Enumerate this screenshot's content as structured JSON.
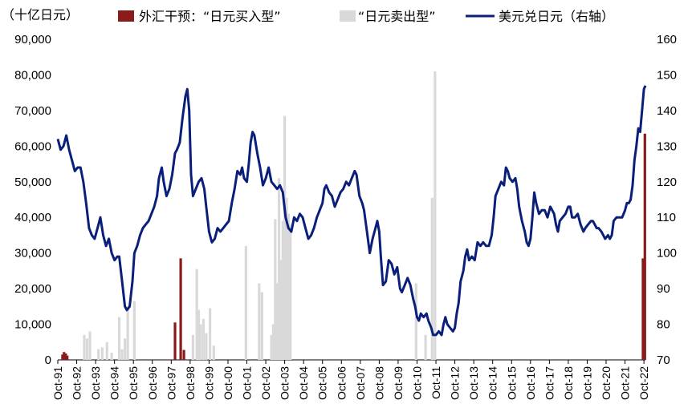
{
  "chart_data": {
    "type": "bar+line",
    "unit_label": "（十亿日元）",
    "legend": [
      {
        "key": "buy",
        "label": "外汇干预：“日元买入型”",
        "color": "#8B1A1A",
        "kind": "bar"
      },
      {
        "key": "sell",
        "label": "“日元卖出型”",
        "color": "#D9D9D9",
        "kind": "bar"
      },
      {
        "key": "rate",
        "label": "美元兑日元（右轴）",
        "color": "#0A1F7A",
        "kind": "line"
      }
    ],
    "left_axis": {
      "min": 0,
      "max": 90000,
      "ticks": [
        "0",
        "10,000",
        "20,000",
        "30,000",
        "40,000",
        "50,000",
        "60,000",
        "70,000",
        "80,000",
        "90,000"
      ]
    },
    "right_axis": {
      "min": 70,
      "max": 160,
      "ticks": [
        "70",
        "80",
        "90",
        "100",
        "110",
        "120",
        "130",
        "140",
        "150",
        "160"
      ]
    },
    "x_axis": {
      "start": 1991.75,
      "end": 2022.83,
      "tick_years": [
        1991,
        1992,
        1993,
        1994,
        1995,
        1996,
        1997,
        1998,
        1999,
        2000,
        2001,
        2002,
        2003,
        2004,
        2005,
        2006,
        2007,
        2008,
        2009,
        2010,
        2011,
        2012,
        2013,
        2014,
        2015,
        2016,
        2017,
        2018,
        2019,
        2020,
        2021,
        2022
      ],
      "tick_labels": [
        "Oct-91",
        "Oct-92",
        "Oct-93",
        "Oct-94",
        "Oct-95",
        "Oct-96",
        "Oct-97",
        "Oct-98",
        "Oct-99",
        "Oct-00",
        "Oct-01",
        "Oct-02",
        "Oct-03",
        "Oct-04",
        "Oct-05",
        "Oct-06",
        "Oct-07",
        "Oct-08",
        "Oct-09",
        "Oct-10",
        "Oct-11",
        "Oct-12",
        "Oct-13",
        "Oct-14",
        "Oct-15",
        "Oct-16",
        "Oct-17",
        "Oct-18",
        "Oct-19",
        "Oct-20",
        "Oct-21",
        "Oct-22"
      ]
    },
    "buy_bars": [
      {
        "t": 1992.0,
        "v": 1500
      },
      {
        "t": 1992.08,
        "v": 2200
      },
      {
        "t": 1992.17,
        "v": 1800
      },
      {
        "t": 1992.25,
        "v": 1200
      },
      {
        "t": 1997.95,
        "v": 10500
      },
      {
        "t": 1998.25,
        "v": 28500
      },
      {
        "t": 1998.42,
        "v": 2800
      },
      {
        "t": 2022.7,
        "v": 28500
      },
      {
        "t": 2022.8,
        "v": 63500
      }
    ],
    "sell_bars": [
      {
        "t": 1993.15,
        "v": 7000
      },
      {
        "t": 1993.3,
        "v": 6000
      },
      {
        "t": 1993.45,
        "v": 8000
      },
      {
        "t": 1993.9,
        "v": 3000
      },
      {
        "t": 1994.1,
        "v": 3500
      },
      {
        "t": 1994.35,
        "v": 5000
      },
      {
        "t": 1994.6,
        "v": 2000
      },
      {
        "t": 1995.0,
        "v": 12000
      },
      {
        "t": 1995.15,
        "v": 3000
      },
      {
        "t": 1995.3,
        "v": 6000
      },
      {
        "t": 1995.45,
        "v": 15000
      },
      {
        "t": 1995.8,
        "v": 16500
      },
      {
        "t": 1998.9,
        "v": 7000
      },
      {
        "t": 1999.1,
        "v": 25500
      },
      {
        "t": 1999.2,
        "v": 14000
      },
      {
        "t": 1999.3,
        "v": 10000
      },
      {
        "t": 1999.45,
        "v": 11500
      },
      {
        "t": 1999.6,
        "v": 7500
      },
      {
        "t": 1999.8,
        "v": 14500
      },
      {
        "t": 2000.0,
        "v": 4000
      },
      {
        "t": 2001.7,
        "v": 32000
      },
      {
        "t": 2002.4,
        "v": 21500
      },
      {
        "t": 2002.55,
        "v": 19000
      },
      {
        "t": 2003.05,
        "v": 7000
      },
      {
        "t": 2003.15,
        "v": 10000
      },
      {
        "t": 2003.25,
        "v": 39500
      },
      {
        "t": 2003.35,
        "v": 21500
      },
      {
        "t": 2003.45,
        "v": 51000
      },
      {
        "t": 2003.55,
        "v": 28000
      },
      {
        "t": 2003.65,
        "v": 39000
      },
      {
        "t": 2003.75,
        "v": 68500
      },
      {
        "t": 2003.85,
        "v": 45500
      },
      {
        "t": 2003.95,
        "v": 41000
      },
      {
        "t": 2004.05,
        "v": 38000
      },
      {
        "t": 2010.7,
        "v": 21500
      },
      {
        "t": 2011.2,
        "v": 7000
      },
      {
        "t": 2011.55,
        "v": 45500
      },
      {
        "t": 2011.7,
        "v": 81000
      }
    ],
    "usdjpy": [
      [
        1991.75,
        132
      ],
      [
        1991.9,
        129
      ],
      [
        1992.05,
        130
      ],
      [
        1992.2,
        133
      ],
      [
        1992.35,
        129
      ],
      [
        1992.5,
        126
      ],
      [
        1992.65,
        123
      ],
      [
        1992.8,
        124
      ],
      [
        1992.95,
        124
      ],
      [
        1993.1,
        120
      ],
      [
        1993.25,
        114
      ],
      [
        1993.4,
        107
      ],
      [
        1993.55,
        105
      ],
      [
        1993.7,
        104
      ],
      [
        1993.85,
        107
      ],
      [
        1994.0,
        110
      ],
      [
        1994.15,
        105
      ],
      [
        1994.3,
        102
      ],
      [
        1994.45,
        104
      ],
      [
        1994.6,
        100
      ],
      [
        1994.75,
        98
      ],
      [
        1994.9,
        99
      ],
      [
        1995.0,
        99
      ],
      [
        1995.15,
        92
      ],
      [
        1995.3,
        85
      ],
      [
        1995.4,
        84
      ],
      [
        1995.55,
        85
      ],
      [
        1995.7,
        92
      ],
      [
        1995.8,
        100
      ],
      [
        1995.95,
        102
      ],
      [
        1996.1,
        105
      ],
      [
        1996.25,
        107
      ],
      [
        1996.4,
        108
      ],
      [
        1996.55,
        109
      ],
      [
        1996.7,
        111
      ],
      [
        1996.85,
        113
      ],
      [
        1997.0,
        116
      ],
      [
        1997.1,
        121
      ],
      [
        1997.25,
        124
      ],
      [
        1997.35,
        120
      ],
      [
        1997.5,
        116
      ],
      [
        1997.65,
        118
      ],
      [
        1997.8,
        122
      ],
      [
        1997.95,
        128
      ],
      [
        1998.05,
        129
      ],
      [
        1998.2,
        131
      ],
      [
        1998.35,
        138
      ],
      [
        1998.5,
        144
      ],
      [
        1998.6,
        146
      ],
      [
        1998.7,
        140
      ],
      [
        1998.8,
        122
      ],
      [
        1998.9,
        116
      ],
      [
        1999.05,
        118
      ],
      [
        1999.2,
        120
      ],
      [
        1999.35,
        121
      ],
      [
        1999.5,
        118
      ],
      [
        1999.6,
        113
      ],
      [
        1999.75,
        106
      ],
      [
        1999.9,
        103
      ],
      [
        2000.05,
        104
      ],
      [
        2000.2,
        107
      ],
      [
        2000.35,
        106
      ],
      [
        2000.5,
        107
      ],
      [
        2000.65,
        108
      ],
      [
        2000.8,
        109
      ],
      [
        2000.95,
        114
      ],
      [
        2001.1,
        118
      ],
      [
        2001.25,
        123
      ],
      [
        2001.4,
        122
      ],
      [
        2001.5,
        124
      ],
      [
        2001.6,
        121
      ],
      [
        2001.75,
        120
      ],
      [
        2001.85,
        125
      ],
      [
        2001.95,
        131
      ],
      [
        2002.05,
        134
      ],
      [
        2002.15,
        133
      ],
      [
        2002.3,
        128
      ],
      [
        2002.45,
        124
      ],
      [
        2002.6,
        119
      ],
      [
        2002.75,
        121
      ],
      [
        2002.9,
        124
      ],
      [
        2003.05,
        120
      ],
      [
        2003.2,
        119
      ],
      [
        2003.35,
        118
      ],
      [
        2003.5,
        119
      ],
      [
        2003.65,
        117
      ],
      [
        2003.8,
        110
      ],
      [
        2003.95,
        107
      ],
      [
        2004.1,
        106
      ],
      [
        2004.25,
        110
      ],
      [
        2004.4,
        109
      ],
      [
        2004.55,
        111
      ],
      [
        2004.7,
        110
      ],
      [
        2004.85,
        107
      ],
      [
        2005.0,
        104
      ],
      [
        2005.15,
        105
      ],
      [
        2005.3,
        107
      ],
      [
        2005.45,
        110
      ],
      [
        2005.6,
        112
      ],
      [
        2005.75,
        114
      ],
      [
        2005.85,
        118
      ],
      [
        2005.95,
        119
      ],
      [
        2006.1,
        117
      ],
      [
        2006.25,
        116
      ],
      [
        2006.4,
        113
      ],
      [
        2006.55,
        115
      ],
      [
        2006.7,
        117
      ],
      [
        2006.85,
        118
      ],
      [
        2007.0,
        120
      ],
      [
        2007.15,
        119
      ],
      [
        2007.3,
        121
      ],
      [
        2007.45,
        123
      ],
      [
        2007.55,
        122
      ],
      [
        2007.7,
        116
      ],
      [
        2007.85,
        114
      ],
      [
        2007.95,
        112
      ],
      [
        2008.1,
        106
      ],
      [
        2008.25,
        100
      ],
      [
        2008.4,
        104
      ],
      [
        2008.55,
        107
      ],
      [
        2008.65,
        109
      ],
      [
        2008.75,
        106
      ],
      [
        2008.85,
        98
      ],
      [
        2008.95,
        91
      ],
      [
        2009.1,
        92
      ],
      [
        2009.25,
        98
      ],
      [
        2009.4,
        97
      ],
      [
        2009.55,
        94
      ],
      [
        2009.7,
        96
      ],
      [
        2009.85,
        90
      ],
      [
        2009.95,
        89
      ],
      [
        2010.1,
        91
      ],
      [
        2010.25,
        93
      ],
      [
        2010.4,
        91
      ],
      [
        2010.55,
        87
      ],
      [
        2010.65,
        85
      ],
      [
        2010.75,
        82
      ],
      [
        2010.85,
        81
      ],
      [
        2010.95,
        83
      ],
      [
        2011.1,
        82
      ],
      [
        2011.25,
        83
      ],
      [
        2011.35,
        81
      ],
      [
        2011.5,
        79
      ],
      [
        2011.6,
        77
      ],
      [
        2011.75,
        77
      ],
      [
        2011.9,
        78
      ],
      [
        2012.05,
        77
      ],
      [
        2012.15,
        80
      ],
      [
        2012.25,
        82
      ],
      [
        2012.35,
        80
      ],
      [
        2012.5,
        79
      ],
      [
        2012.65,
        78
      ],
      [
        2012.75,
        79
      ],
      [
        2012.85,
        83
      ],
      [
        2012.95,
        86
      ],
      [
        2013.05,
        92
      ],
      [
        2013.2,
        95
      ],
      [
        2013.3,
        99
      ],
      [
        2013.4,
        101
      ],
      [
        2013.5,
        98
      ],
      [
        2013.65,
        99
      ],
      [
        2013.8,
        98
      ],
      [
        2013.95,
        103
      ],
      [
        2014.1,
        102
      ],
      [
        2014.25,
        103
      ],
      [
        2014.4,
        102
      ],
      [
        2014.55,
        102
      ],
      [
        2014.7,
        105
      ],
      [
        2014.8,
        110
      ],
      [
        2014.9,
        116
      ],
      [
        2015.05,
        118
      ],
      [
        2015.2,
        120
      ],
      [
        2015.35,
        119
      ],
      [
        2015.45,
        124
      ],
      [
        2015.55,
        123
      ],
      [
        2015.65,
        121
      ],
      [
        2015.8,
        120
      ],
      [
        2015.95,
        121
      ],
      [
        2016.05,
        118
      ],
      [
        2016.15,
        113
      ],
      [
        2016.3,
        109
      ],
      [
        2016.45,
        106
      ],
      [
        2016.55,
        103
      ],
      [
        2016.65,
        102
      ],
      [
        2016.75,
        104
      ],
      [
        2016.85,
        110
      ],
      [
        2016.95,
        117
      ],
      [
        2017.05,
        114
      ],
      [
        2017.2,
        111
      ],
      [
        2017.35,
        112
      ],
      [
        2017.5,
        112
      ],
      [
        2017.65,
        110
      ],
      [
        2017.8,
        113
      ],
      [
        2017.9,
        112
      ],
      [
        2018.0,
        111
      ],
      [
        2018.1,
        108
      ],
      [
        2018.2,
        106
      ],
      [
        2018.3,
        109
      ],
      [
        2018.45,
        110
      ],
      [
        2018.6,
        111
      ],
      [
        2018.75,
        113
      ],
      [
        2018.85,
        113
      ],
      [
        2018.95,
        110
      ],
      [
        2019.1,
        110
      ],
      [
        2019.25,
        111
      ],
      [
        2019.4,
        108
      ],
      [
        2019.55,
        106
      ],
      [
        2019.65,
        107
      ],
      [
        2019.8,
        108
      ],
      [
        2019.95,
        109
      ],
      [
        2020.05,
        109
      ],
      [
        2020.15,
        108
      ],
      [
        2020.25,
        107
      ],
      [
        2020.35,
        107
      ],
      [
        2020.5,
        106
      ],
      [
        2020.6,
        105
      ],
      [
        2020.7,
        104
      ],
      [
        2020.85,
        105
      ],
      [
        2020.95,
        104
      ],
      [
        2021.05,
        105
      ],
      [
        2021.15,
        109
      ],
      [
        2021.3,
        110
      ],
      [
        2021.45,
        110
      ],
      [
        2021.6,
        110
      ],
      [
        2021.75,
        112
      ],
      [
        2021.85,
        114
      ],
      [
        2021.95,
        114
      ],
      [
        2022.05,
        115
      ],
      [
        2022.15,
        119
      ],
      [
        2022.25,
        126
      ],
      [
        2022.35,
        130
      ],
      [
        2022.45,
        135
      ],
      [
        2022.55,
        134
      ],
      [
        2022.65,
        140
      ],
      [
        2022.75,
        146
      ],
      [
        2022.83,
        147
      ]
    ]
  }
}
